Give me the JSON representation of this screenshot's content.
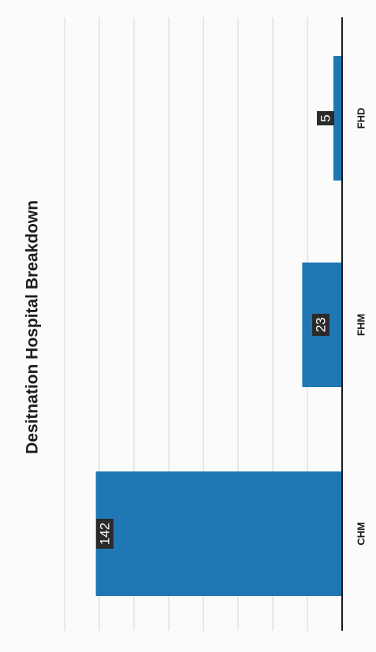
{
  "chart_data": {
    "type": "bar",
    "orientation": "vertical",
    "rotation": "90-ccw",
    "title": "Desitnation Hospital Breakdown",
    "xlabel": "",
    "ylabel": "",
    "categories": [
      "CHM",
      "FHM",
      "FHD"
    ],
    "values": [
      142,
      23,
      5
    ],
    "ylim": [
      0,
      175
    ],
    "grid": true,
    "legend": "none",
    "data_labels": true,
    "colors": {
      "bar": "#1f77b4",
      "gridline": "#d6d6d6",
      "axis": "#1a1a1a",
      "label_bg": "#2b2b2b",
      "label_text": "#ffffff"
    }
  }
}
